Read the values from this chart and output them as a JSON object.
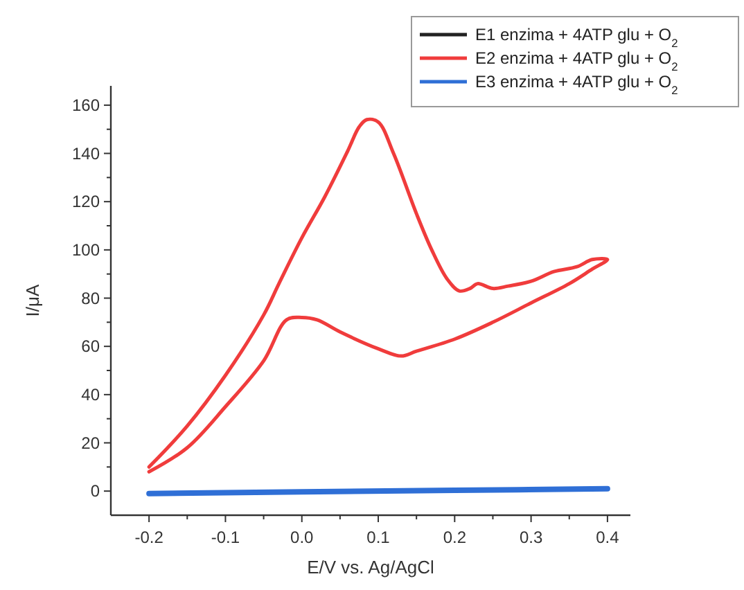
{
  "chart_data": {
    "type": "line",
    "xlabel": "E/V vs. Ag/AgCl",
    "ylabel": "I/μA",
    "xlim": [
      -0.25,
      0.43
    ],
    "ylim": [
      -10,
      168
    ],
    "xticks": [
      -0.2,
      {
        "value": -0.15,
        "label": null
      },
      -0.1,
      {
        "value": -0.05,
        "label": null
      },
      {
        "value": 0,
        "label": "0.0"
      },
      {
        "value": 0.05,
        "label": null
      },
      0.1,
      {
        "value": 0.15,
        "label": null
      },
      0.2,
      {
        "value": 0.25,
        "label": null
      },
      0.3,
      {
        "value": 0.35,
        "label": null
      },
      0.4
    ],
    "yticks": [
      0,
      {
        "value": 10,
        "label": null
      },
      20,
      {
        "value": 30,
        "label": null
      },
      40,
      {
        "value": 50,
        "label": null
      },
      60,
      {
        "value": 70,
        "label": null
      },
      80,
      {
        "value": 90,
        "label": null
      },
      100,
      {
        "value": 110,
        "label": null
      },
      120,
      {
        "value": 130,
        "label": null
      },
      140,
      {
        "value": 150,
        "label": null
      },
      160
    ],
    "grid": false,
    "legend": "top right",
    "line_style": "solid",
    "marker": "none",
    "series": [
      {
        "name": "E1 enzima + 4ATP glu + O$_{2}$",
        "color": "#222222"
      },
      {
        "name": "E2 enzima + 4ATP glu + O$_{2}$",
        "color": "#f03c3c",
        "x": [
          -0.2,
          -0.15,
          -0.1,
          -0.05,
          -0.03,
          0,
          0.03,
          0.06,
          0.075,
          0.085,
          0.1,
          0.12,
          0.15,
          0.17,
          0.19,
          0.206,
          0.22,
          0.23,
          0.25,
          0.27,
          0.3,
          0.33,
          0.36,
          0.38,
          0.4,
          0.38,
          0.35,
          0.3,
          0.25,
          0.2,
          0.15,
          0.13,
          0.1,
          0.05,
          0.02,
          0,
          -0.02,
          -0.05,
          -0.1,
          -0.15,
          -0.2
        ],
        "values": [
          10,
          27,
          48,
          73,
          86,
          105,
          122,
          141,
          151,
          154,
          153,
          140,
          115,
          100,
          88,
          83,
          84,
          86,
          84,
          85,
          87,
          91,
          93,
          96,
          96,
          92,
          86,
          78,
          70,
          63,
          58,
          56,
          59,
          66,
          71,
          72,
          71,
          54,
          35,
          18,
          8
        ]
      },
      {
        "name": "E3 enzima + 4ATP glu + O$_{2}$",
        "color": "#2f6fd6",
        "x": [
          -0.2,
          0,
          0.2,
          0.4
        ],
        "values": [
          -1,
          -0.3,
          0.3,
          1
        ]
      }
    ]
  }
}
